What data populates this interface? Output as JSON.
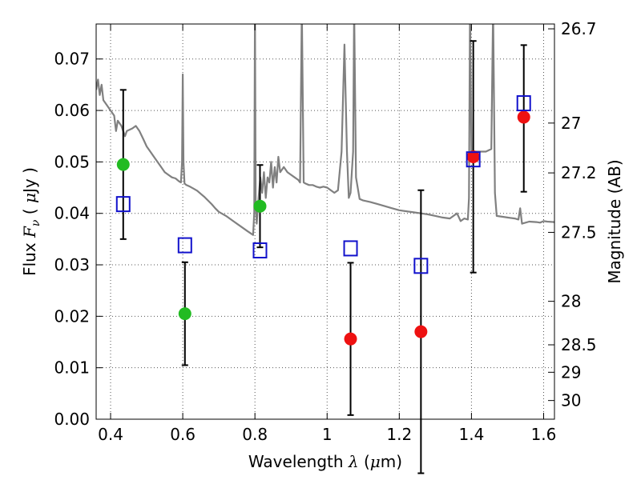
{
  "chart_data": {
    "type": "scatter",
    "title": "",
    "xlabel": {
      "prefix": "Wavelength  ",
      "symbol": "λ",
      "units": " (",
      "mu": "μ",
      "unit_tail": "m)"
    },
    "ylabel": {
      "prefix": "Flux  ",
      "symbol": "F",
      "sub": "ν",
      "units": "  (  ",
      "mu": "μ",
      "unit_tail": "Jy )"
    },
    "y2label": "Magnitude (AB)",
    "xlim": [
      0.36,
      1.63
    ],
    "ylim": [
      0.0,
      0.0768
    ],
    "grid": true,
    "x_ticks": [
      0.4,
      0.6,
      0.8,
      1.0,
      1.2,
      1.4,
      1.6
    ],
    "x_tick_labels": [
      "0.4",
      "0.6",
      "0.8",
      "1",
      "1.2",
      "1.4",
      "1.6"
    ],
    "y_ticks": [
      0.0,
      0.01,
      0.02,
      0.03,
      0.04,
      0.05,
      0.06,
      0.07
    ],
    "y_tick_labels": [
      "0.00",
      "0.01",
      "0.02",
      "0.03",
      "0.04",
      "0.05",
      "0.06",
      "0.07"
    ],
    "y2_ticks": [
      {
        "mag": 26.7,
        "label": "26.7"
      },
      {
        "mag": 27.0,
        "label": "27"
      },
      {
        "mag": 27.2,
        "label": "27.2"
      },
      {
        "mag": 27.5,
        "label": "27.5"
      },
      {
        "mag": 28.0,
        "label": "28"
      },
      {
        "mag": 28.5,
        "label": "28.5"
      },
      {
        "mag": 29.0,
        "label": "29"
      },
      {
        "mag": 30.0,
        "label": "30"
      }
    ],
    "colors": {
      "green": "#22bb22",
      "red": "#ee1111",
      "blue": "#1111cc",
      "spectrum": "#808080",
      "errorbar": "#000000",
      "grid": "#555555"
    },
    "series": [
      {
        "marker": "circle",
        "color": "green",
        "points": [
          {
            "x": 0.435,
            "y": 0.0495,
            "err_lo": 0.0145,
            "err_hi": 0.0145
          },
          {
            "x": 0.606,
            "y": 0.0205,
            "err_lo": 0.01,
            "err_hi": 0.01
          },
          {
            "x": 0.814,
            "y": 0.0414,
            "err_lo": 0.008,
            "err_hi": 0.008
          }
        ]
      },
      {
        "marker": "circle",
        "color": "red",
        "points": [
          {
            "x": 1.065,
            "y": 0.0156,
            "err_lo": 0.0148,
            "err_hi": 0.0148
          },
          {
            "x": 1.26,
            "y": 0.017,
            "err_lo": 0.0275,
            "err_hi": 0.0275
          },
          {
            "x": 1.405,
            "y": 0.051,
            "err_lo": 0.0225,
            "err_hi": 0.0225
          },
          {
            "x": 1.545,
            "y": 0.0587,
            "err_lo": 0.0145,
            "err_hi": 0.014
          }
        ]
      },
      {
        "marker": "square",
        "color": "blue",
        "points": [
          {
            "x": 0.435,
            "y": 0.0418
          },
          {
            "x": 0.606,
            "y": 0.0338
          },
          {
            "x": 0.814,
            "y": 0.0328
          },
          {
            "x": 1.065,
            "y": 0.0332
          },
          {
            "x": 1.26,
            "y": 0.0298
          },
          {
            "x": 1.405,
            "y": 0.0505
          },
          {
            "x": 1.545,
            "y": 0.0614
          }
        ]
      }
    ],
    "spectrum": [
      [
        0.36,
        0.064
      ],
      [
        0.365,
        0.066
      ],
      [
        0.37,
        0.063
      ],
      [
        0.375,
        0.065
      ],
      [
        0.38,
        0.062
      ],
      [
        0.39,
        0.061
      ],
      [
        0.4,
        0.06
      ],
      [
        0.41,
        0.059
      ],
      [
        0.415,
        0.056
      ],
      [
        0.42,
        0.058
      ],
      [
        0.43,
        0.057
      ],
      [
        0.44,
        0.055
      ],
      [
        0.445,
        0.056
      ],
      [
        0.46,
        0.0565
      ],
      [
        0.47,
        0.057
      ],
      [
        0.48,
        0.056
      ],
      [
        0.49,
        0.0545
      ],
      [
        0.5,
        0.053
      ],
      [
        0.51,
        0.052
      ],
      [
        0.52,
        0.051
      ],
      [
        0.53,
        0.05
      ],
      [
        0.54,
        0.049
      ],
      [
        0.55,
        0.048
      ],
      [
        0.56,
        0.0475
      ],
      [
        0.57,
        0.047
      ],
      [
        0.58,
        0.0468
      ],
      [
        0.59,
        0.0462
      ],
      [
        0.595,
        0.046
      ],
      [
        0.598,
        0.05
      ],
      [
        0.6,
        0.067
      ],
      [
        0.602,
        0.05
      ],
      [
        0.605,
        0.0458
      ],
      [
        0.61,
        0.0455
      ],
      [
        0.62,
        0.0452
      ],
      [
        0.63,
        0.0448
      ],
      [
        0.64,
        0.0444
      ],
      [
        0.65,
        0.0438
      ],
      [
        0.66,
        0.0432
      ],
      [
        0.67,
        0.0425
      ],
      [
        0.68,
        0.0418
      ],
      [
        0.69,
        0.041
      ],
      [
        0.7,
        0.0403
      ],
      [
        0.72,
        0.0395
      ],
      [
        0.74,
        0.0385
      ],
      [
        0.76,
        0.0375
      ],
      [
        0.78,
        0.0365
      ],
      [
        0.795,
        0.0358
      ],
      [
        0.798,
        0.04
      ],
      [
        0.8,
        0.08
      ],
      [
        0.802,
        0.042
      ],
      [
        0.805,
        0.038
      ],
      [
        0.81,
        0.043
      ],
      [
        0.815,
        0.047
      ],
      [
        0.82,
        0.044
      ],
      [
        0.825,
        0.048
      ],
      [
        0.83,
        0.043
      ],
      [
        0.835,
        0.047
      ],
      [
        0.84,
        0.046
      ],
      [
        0.845,
        0.05
      ],
      [
        0.85,
        0.045
      ],
      [
        0.855,
        0.049
      ],
      [
        0.86,
        0.046
      ],
      [
        0.865,
        0.051
      ],
      [
        0.87,
        0.048
      ],
      [
        0.88,
        0.049
      ],
      [
        0.89,
        0.048
      ],
      [
        0.9,
        0.0475
      ],
      [
        0.91,
        0.047
      ],
      [
        0.92,
        0.0465
      ],
      [
        0.925,
        0.046
      ],
      [
        0.93,
        0.08
      ],
      [
        0.935,
        0.046
      ],
      [
        0.94,
        0.0458
      ],
      [
        0.95,
        0.0455
      ],
      [
        0.96,
        0.0455
      ],
      [
        0.97,
        0.0452
      ],
      [
        0.98,
        0.045
      ],
      [
        0.99,
        0.0452
      ],
      [
        1.0,
        0.045
      ],
      [
        1.01,
        0.0445
      ],
      [
        1.02,
        0.044
      ],
      [
        1.03,
        0.0445
      ],
      [
        1.04,
        0.052
      ],
      [
        1.048,
        0.0728
      ],
      [
        1.055,
        0.052
      ],
      [
        1.06,
        0.043
      ],
      [
        1.065,
        0.044
      ],
      [
        1.072,
        0.052
      ],
      [
        1.075,
        0.08
      ],
      [
        1.08,
        0.047
      ],
      [
        1.09,
        0.0428
      ],
      [
        1.1,
        0.0425
      ],
      [
        1.12,
        0.0422
      ],
      [
        1.14,
        0.0418
      ],
      [
        1.16,
        0.0414
      ],
      [
        1.18,
        0.041
      ],
      [
        1.2,
        0.0406
      ],
      [
        1.22,
        0.0404
      ],
      [
        1.24,
        0.0402
      ],
      [
        1.26,
        0.04
      ],
      [
        1.28,
        0.0398
      ],
      [
        1.3,
        0.0395
      ],
      [
        1.32,
        0.0392
      ],
      [
        1.34,
        0.039
      ],
      [
        1.36,
        0.04
      ],
      [
        1.37,
        0.0385
      ],
      [
        1.38,
        0.039
      ],
      [
        1.39,
        0.0388
      ],
      [
        1.393,
        0.043
      ],
      [
        1.396,
        0.08
      ],
      [
        1.4,
        0.052
      ],
      [
        1.42,
        0.052
      ],
      [
        1.44,
        0.052
      ],
      [
        1.455,
        0.0525
      ],
      [
        1.46,
        0.08
      ],
      [
        1.465,
        0.044
      ],
      [
        1.47,
        0.0395
      ],
      [
        1.5,
        0.0392
      ],
      [
        1.52,
        0.039
      ],
      [
        1.53,
        0.0388
      ],
      [
        1.535,
        0.041
      ],
      [
        1.54,
        0.038
      ],
      [
        1.56,
        0.0384
      ],
      [
        1.58,
        0.0383
      ],
      [
        1.59,
        0.0382
      ],
      [
        1.6,
        0.0385
      ],
      [
        1.61,
        0.0384
      ],
      [
        1.63,
        0.0383
      ]
    ]
  }
}
